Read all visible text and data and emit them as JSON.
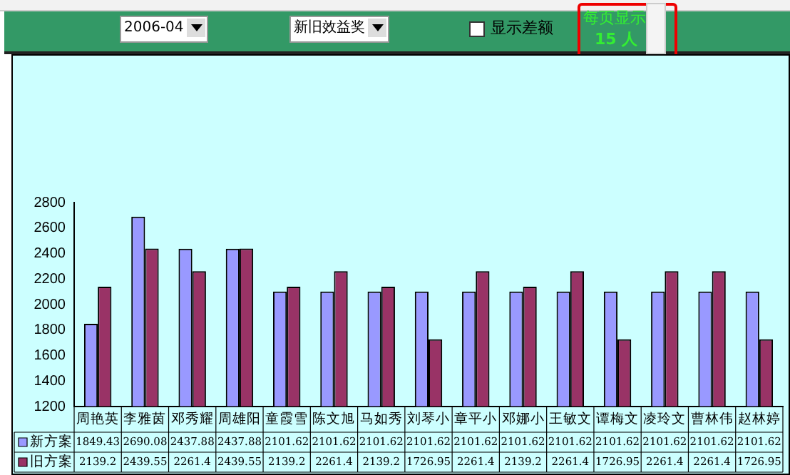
{
  "chart_data": {
    "type": "bar",
    "categories": [
      "周艳英",
      "李雅茵",
      "邓秀耀",
      "周雄阳",
      "童霞雪",
      "陈文旭",
      "马如秀",
      "刘琴小",
      "章平小",
      "邓娜小",
      "王敏文",
      "谭梅文",
      "凌玲文",
      "曹林伟",
      "赵林婷"
    ],
    "series": [
      {
        "name": "新方案",
        "color": "#9999ff",
        "values": [
          1849.43,
          2690.08,
          2437.88,
          2437.88,
          2101.62,
          2101.62,
          2101.62,
          2101.62,
          2101.62,
          2101.62,
          2101.62,
          2101.62,
          2101.62,
          2101.62,
          2101.62
        ]
      },
      {
        "name": "旧方案",
        "color": "#993366",
        "values": [
          2139.2,
          2439.55,
          2261.4,
          2439.55,
          2139.2,
          2261.4,
          2139.2,
          1726.95,
          2261.4,
          2139.2,
          2261.4,
          1726.95,
          2261.4,
          2261.4,
          1726.95
        ]
      }
    ],
    "ylim": [
      1200,
      2800
    ],
    "yticks": [
      1200,
      1400,
      1600,
      1800,
      2000,
      2200,
      2400,
      2600,
      2800
    ],
    "grid": false,
    "legend": "bottom",
    "data_labels": true,
    "annotations": [
      "2006-04",
      "新旧效益奖",
      "显示差额",
      "每页显示",
      "15 人"
    ]
  }
}
